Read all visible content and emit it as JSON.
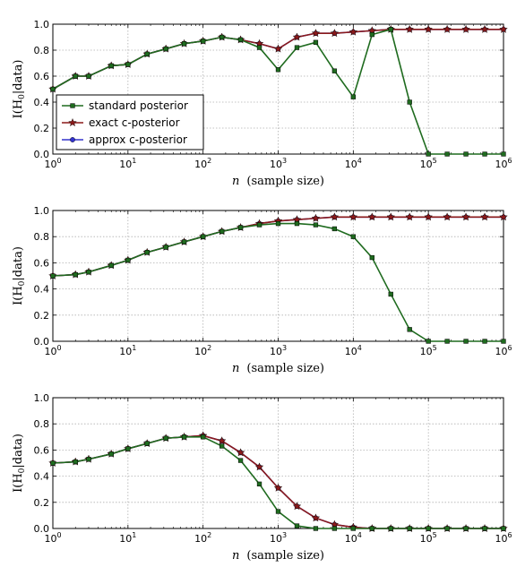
{
  "chart_data": [
    {
      "type": "line",
      "xscale": "log",
      "xlim": [
        1,
        1000000
      ],
      "ylim": [
        0,
        1
      ],
      "xlabel_var": "n",
      "xlabel_text": "(sample size)",
      "ylabel": "I(H0|data)",
      "yticks": [
        "0.0",
        "0.2",
        "0.4",
        "0.6",
        "0.8",
        "1.0"
      ],
      "grid": true,
      "legend": {
        "position": "center-left",
        "entries": [
          "standard posterior",
          "exact c-posterior",
          "approx c-posterior"
        ]
      },
      "x": [
        1,
        2,
        3,
        6,
        10,
        18,
        32,
        56,
        100,
        178,
        316,
        562,
        1000,
        1778,
        3162,
        5623,
        10000,
        17783,
        31623,
        56234,
        100000,
        177828,
        316228,
        562341,
        1000000
      ],
      "series": [
        {
          "name": "standard posterior",
          "color": "#1f6b1f",
          "marker": "square",
          "values": [
            0.5,
            0.6,
            0.6,
            0.68,
            0.69,
            0.77,
            0.81,
            0.85,
            0.87,
            0.9,
            0.88,
            0.82,
            0.65,
            0.82,
            0.86,
            0.64,
            0.44,
            0.92,
            0.96,
            0.4,
            0.0,
            0.0,
            0.0,
            0.0,
            0.0
          ]
        },
        {
          "name": "exact c-posterior",
          "color": "#8b1a1a",
          "marker": "star",
          "values": [
            0.5,
            0.6,
            0.6,
            0.68,
            0.69,
            0.77,
            0.81,
            0.85,
            0.87,
            0.9,
            0.88,
            0.85,
            0.81,
            0.9,
            0.93,
            0.93,
            0.94,
            0.95,
            0.96,
            0.96,
            0.96,
            0.96,
            0.96,
            0.96,
            0.96
          ]
        },
        {
          "name": "approx c-posterior",
          "color": "#3333cc",
          "marker": "circle",
          "values": [
            0.5,
            0.6,
            0.6,
            0.68,
            0.69,
            0.77,
            0.81,
            0.85,
            0.87,
            0.9,
            0.88,
            0.85,
            0.81,
            0.9,
            0.93,
            0.93,
            0.94,
            0.95,
            0.96,
            0.96,
            0.96,
            0.96,
            0.96,
            0.96,
            0.96
          ]
        }
      ]
    },
    {
      "type": "line",
      "xscale": "log",
      "xlim": [
        1,
        1000000
      ],
      "ylim": [
        0,
        1
      ],
      "xlabel_var": "n",
      "xlabel_text": "(sample size)",
      "ylabel": "I(H0|data)",
      "yticks": [
        "0.0",
        "0.2",
        "0.4",
        "0.6",
        "0.8",
        "1.0"
      ],
      "grid": true,
      "x": [
        1,
        2,
        3,
        6,
        10,
        18,
        32,
        56,
        100,
        178,
        316,
        562,
        1000,
        1778,
        3162,
        5623,
        10000,
        17783,
        31623,
        56234,
        100000,
        177828,
        316228,
        562341,
        1000000
      ],
      "series": [
        {
          "name": "standard posterior",
          "color": "#1f6b1f",
          "marker": "square",
          "values": [
            0.5,
            0.51,
            0.53,
            0.58,
            0.62,
            0.68,
            0.72,
            0.76,
            0.8,
            0.84,
            0.87,
            0.89,
            0.9,
            0.9,
            0.89,
            0.86,
            0.8,
            0.64,
            0.36,
            0.09,
            0.0,
            0.0,
            0.0,
            0.0,
            0.0
          ]
        },
        {
          "name": "exact c-posterior",
          "color": "#8b1a1a",
          "marker": "star",
          "values": [
            0.5,
            0.51,
            0.53,
            0.58,
            0.62,
            0.68,
            0.72,
            0.76,
            0.8,
            0.84,
            0.87,
            0.9,
            0.92,
            0.93,
            0.94,
            0.95,
            0.95,
            0.95,
            0.95,
            0.95,
            0.95,
            0.95,
            0.95,
            0.95,
            0.95
          ]
        },
        {
          "name": "approx c-posterior",
          "color": "#3333cc",
          "marker": "circle",
          "values": [
            0.5,
            0.51,
            0.53,
            0.58,
            0.62,
            0.68,
            0.72,
            0.76,
            0.8,
            0.84,
            0.87,
            0.9,
            0.92,
            0.93,
            0.94,
            0.95,
            0.95,
            0.95,
            0.95,
            0.95,
            0.95,
            0.95,
            0.95,
            0.95,
            0.95
          ]
        }
      ]
    },
    {
      "type": "line",
      "xscale": "log",
      "xlim": [
        1,
        1000000
      ],
      "ylim": [
        0,
        1
      ],
      "xlabel_var": "n",
      "xlabel_text": "(sample size)",
      "ylabel": "I(H0|data)",
      "yticks": [
        "0.0",
        "0.2",
        "0.4",
        "0.6",
        "0.8",
        "1.0"
      ],
      "grid": true,
      "x": [
        1,
        2,
        3,
        6,
        10,
        18,
        32,
        56,
        100,
        178,
        316,
        562,
        1000,
        1778,
        3162,
        5623,
        10000,
        17783,
        31623,
        56234,
        100000,
        177828,
        316228,
        562341,
        1000000
      ],
      "series": [
        {
          "name": "standard posterior",
          "color": "#1f6b1f",
          "marker": "square",
          "values": [
            0.5,
            0.51,
            0.53,
            0.57,
            0.61,
            0.65,
            0.69,
            0.7,
            0.7,
            0.63,
            0.52,
            0.34,
            0.13,
            0.02,
            0.0,
            0.0,
            0.0,
            0.0,
            0.0,
            0.0,
            0.0,
            0.0,
            0.0,
            0.0,
            0.0
          ]
        },
        {
          "name": "exact c-posterior",
          "color": "#8b1a1a",
          "marker": "star",
          "values": [
            0.5,
            0.51,
            0.53,
            0.57,
            0.61,
            0.65,
            0.69,
            0.7,
            0.71,
            0.67,
            0.58,
            0.47,
            0.31,
            0.17,
            0.08,
            0.03,
            0.01,
            0.0,
            0.0,
            0.0,
            0.0,
            0.0,
            0.0,
            0.0,
            0.0
          ]
        },
        {
          "name": "approx c-posterior",
          "color": "#3333cc",
          "marker": "circle",
          "values": [
            0.5,
            0.51,
            0.53,
            0.57,
            0.61,
            0.65,
            0.69,
            0.7,
            0.71,
            0.67,
            0.58,
            0.47,
            0.31,
            0.17,
            0.08,
            0.03,
            0.01,
            0.0,
            0.0,
            0.0,
            0.0,
            0.0,
            0.0,
            0.0,
            0.0
          ]
        }
      ]
    }
  ]
}
